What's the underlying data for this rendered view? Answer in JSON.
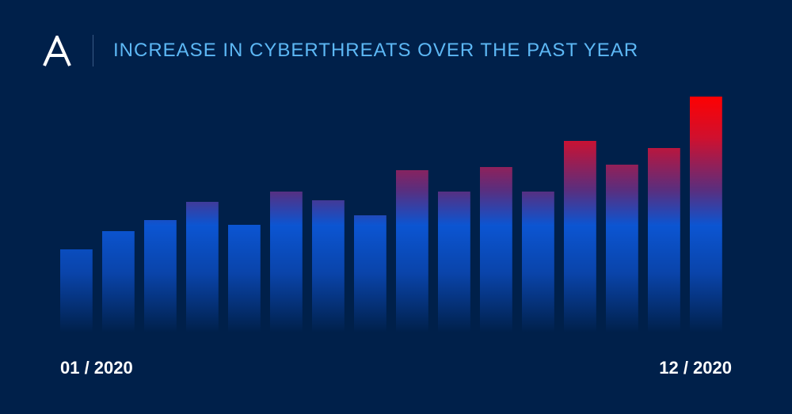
{
  "header": {
    "title": "INCREASE IN CYBERTHREATS OVER THE PAST YEAR",
    "logo_icon": "acronis-a-logo-icon"
  },
  "colors": {
    "background": "#00204a",
    "title": "#5db8f5",
    "bar_blue": "#0b55d2",
    "bar_red": "#ff0000",
    "labels": "#ffffff"
  },
  "chart_data": {
    "type": "bar",
    "title": "INCREASE IN CYBERTHREATS OVER THE PAST YEAR",
    "x_start_label": "01 / 2020",
    "x_end_label": "12 / 2020",
    "values": [
      105,
      128,
      142,
      165,
      136,
      178,
      167,
      148,
      205,
      178,
      209,
      178,
      242,
      212,
      233,
      298
    ],
    "ylim": [
      0,
      300
    ],
    "grid": false,
    "axes_visible": false
  }
}
